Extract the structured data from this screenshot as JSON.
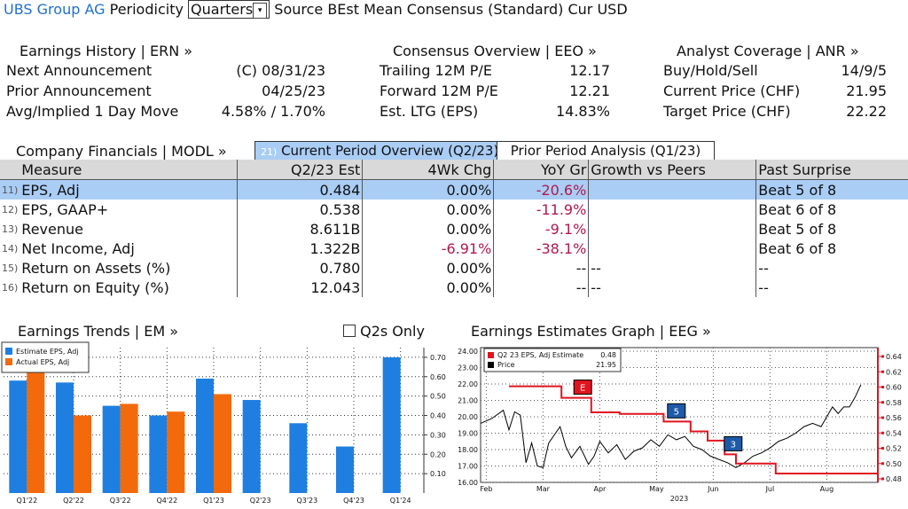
{
  "header": {
    "ticker": "UBS Group AG",
    "periodicity_label": "Periodicity",
    "periodicity_value": "Quarters",
    "source_label": "Source",
    "source_value": "BEst Mean Consensus (Standard)",
    "currency_label": "Cur",
    "currency_value": "USD"
  },
  "earnings_history": {
    "title": "Earnings History | ERN »",
    "rows": [
      {
        "label": "Next Announcement",
        "value": "(C)  08/31/23"
      },
      {
        "label": "Prior Announcement",
        "value": "04/25/23"
      },
      {
        "label": "Avg/Implied 1 Day Move",
        "value": "4.58% / 1.70%"
      }
    ]
  },
  "consensus_overview": {
    "title": "Consensus Overview | EEO »",
    "rows": [
      {
        "label": "Trailing 12M P/E",
        "value": "12.17"
      },
      {
        "label": "Forward 12M P/E",
        "value": "12.21"
      },
      {
        "label": "Est. LTG (EPS)",
        "value": "14.83%"
      }
    ]
  },
  "analyst_coverage": {
    "title": "Analyst Coverage | ANR »",
    "rows": [
      {
        "label": "Buy/Hold/Sell",
        "value": "14/9/5"
      },
      {
        "label": "Current Price (CHF)",
        "value": "21.95"
      },
      {
        "label": "Target Price (CHF)",
        "value": "22.22"
      }
    ]
  },
  "financials": {
    "title": "Company Financials | MODL »",
    "tab_current_num": "21)",
    "tab_current": "Current Period Overview (Q2/23)",
    "tab_prior": "Prior Period Analysis (Q1/23)",
    "columns": [
      "Measure",
      "Q2/23 Est",
      "4Wk Chg",
      "YoY Gr",
      "Growth vs Peers",
      "Past Surprise"
    ],
    "rows": [
      {
        "num": "11)",
        "measure": "EPS, Adj",
        "est": "0.484",
        "chg": "0.00%",
        "yoy": "-20.6%",
        "peers": "",
        "surprise": "Beat 5 of 8"
      },
      {
        "num": "12)",
        "measure": "EPS, GAAP+",
        "est": "0.538",
        "chg": "0.00%",
        "yoy": "-11.9%",
        "peers": "",
        "surprise": "Beat 6 of 8"
      },
      {
        "num": "13)",
        "measure": "Revenue",
        "est": "8.611B",
        "chg": "0.00%",
        "yoy": "-9.1%",
        "peers": "",
        "surprise": "Beat 5 of 8"
      },
      {
        "num": "14)",
        "measure": "Net Income, Adj",
        "est": "1.322B",
        "chg": "-6.91%",
        "yoy": "-38.1%",
        "peers": "",
        "surprise": "Beat 6 of 8"
      },
      {
        "num": "15)",
        "measure": "Return on Assets (%)",
        "est": "0.780",
        "chg": "0.00%",
        "yoy": "--",
        "peers": "--",
        "surprise": "--"
      },
      {
        "num": "16)",
        "measure": "Return on Equity (%)",
        "est": "12.043",
        "chg": "0.00%",
        "yoy": "--",
        "peers": "--",
        "surprise": "--"
      }
    ]
  },
  "earnings_trends": {
    "title": "Earnings Trends | EM »",
    "checkbox_label": "Q2s Only"
  },
  "estimates_graph": {
    "title": "Earnings Estimates Graph | EEG »"
  },
  "chart_data": [
    {
      "type": "bar",
      "categories": [
        "Q1'22",
        "Q2'22",
        "Q3'22",
        "Q4'22",
        "Q1'23",
        "Q2'23",
        "Q3'23",
        "Q4'23",
        "Q1'24"
      ],
      "series": [
        {
          "name": "Estimate EPS, Adj",
          "color": "#1e7fe0",
          "values": [
            0.58,
            0.57,
            0.45,
            0.4,
            0.59,
            0.48,
            0.36,
            0.24,
            0.7
          ]
        },
        {
          "name": "Actual EPS, Adj",
          "color": "#f26a0c",
          "values": [
            0.62,
            0.4,
            0.46,
            0.42,
            0.51,
            null,
            null,
            null,
            null
          ]
        }
      ],
      "ylim": [
        0,
        0.75
      ],
      "yticks": [
        "0.10",
        "0.20",
        "0.30",
        "0.40",
        "0.50",
        "0.60",
        "0.70"
      ],
      "grid": true,
      "legend": "top-left"
    },
    {
      "type": "line",
      "x_label": "2023",
      "xticks": [
        "Feb",
        "Mar",
        "Apr",
        "May",
        "Jun",
        "Jul",
        "Aug"
      ],
      "y_left_ticks": [
        "16.00",
        "17.00",
        "18.00",
        "19.00",
        "20.00",
        "21.00",
        "22.00",
        "23.00",
        "24.00"
      ],
      "y_right_ticks": [
        "0.48",
        "0.50",
        "0.52",
        "0.54",
        "0.56",
        "0.58",
        "0.60",
        "0.62",
        "0.64"
      ],
      "legend": [
        {
          "name": "Q2 23 EPS, Adj Estimate",
          "value": "0.48",
          "color": "#e0141e"
        },
        {
          "name": "Price",
          "value": "21.95",
          "color": "#000000"
        }
      ],
      "series": [
        {
          "name": "Q2 23 EPS, Adj Estimate",
          "color": "#e0141e",
          "points": [
            [
              1.0,
              0.601
            ],
            [
              2.85,
              0.601
            ],
            [
              2.85,
              0.586
            ],
            [
              3.9,
              0.586
            ],
            [
              3.9,
              0.567
            ],
            [
              4.9,
              0.567
            ],
            [
              4.9,
              0.565
            ],
            [
              6.45,
              0.565
            ],
            [
              6.45,
              0.555
            ],
            [
              7.4,
              0.555
            ],
            [
              7.4,
              0.542
            ],
            [
              8.0,
              0.542
            ],
            [
              8.0,
              0.53
            ],
            [
              8.6,
              0.53
            ],
            [
              8.6,
              0.512
            ],
            [
              9.0,
              0.512
            ],
            [
              9.0,
              0.5
            ],
            [
              10.4,
              0.5
            ],
            [
              10.4,
              0.487
            ],
            [
              14.0,
              0.487
            ]
          ]
        },
        {
          "name": "Price",
          "color": "#000000",
          "points": [
            [
              0.0,
              19.6
            ],
            [
              0.4,
              19.9
            ],
            [
              0.8,
              20.4
            ],
            [
              1.0,
              19.2
            ],
            [
              1.2,
              20.3
            ],
            [
              1.4,
              20.1
            ],
            [
              1.6,
              17.2
            ],
            [
              1.8,
              18.4
            ],
            [
              2.0,
              17.0
            ],
            [
              2.2,
              16.9
            ],
            [
              2.4,
              18.4
            ],
            [
              2.6,
              18.9
            ],
            [
              2.8,
              19.4
            ],
            [
              3.0,
              18.2
            ],
            [
              3.2,
              17.5
            ],
            [
              3.5,
              18.2
            ],
            [
              3.8,
              17.1
            ],
            [
              4.0,
              17.6
            ],
            [
              4.2,
              18.5
            ],
            [
              4.5,
              17.8
            ],
            [
              4.8,
              18.3
            ],
            [
              5.1,
              17.4
            ],
            [
              5.4,
              17.9
            ],
            [
              5.7,
              18.1
            ],
            [
              6.0,
              18.6
            ],
            [
              6.3,
              18.2
            ],
            [
              6.6,
              18.9
            ],
            [
              6.9,
              18.6
            ],
            [
              7.2,
              18.8
            ],
            [
              7.5,
              18.2
            ],
            [
              7.8,
              18.0
            ],
            [
              8.1,
              17.6
            ],
            [
              8.4,
              17.4
            ],
            [
              8.7,
              17.2
            ],
            [
              9.0,
              16.9
            ],
            [
              9.3,
              17.2
            ],
            [
              9.6,
              17.6
            ],
            [
              9.9,
              17.8
            ],
            [
              10.2,
              18.1
            ],
            [
              10.5,
              18.5
            ],
            [
              10.8,
              18.7
            ],
            [
              11.1,
              19.0
            ],
            [
              11.4,
              19.4
            ],
            [
              11.7,
              19.6
            ],
            [
              12.0,
              19.4
            ],
            [
              12.2,
              20.0
            ],
            [
              12.4,
              20.6
            ],
            [
              12.6,
              20.2
            ],
            [
              12.8,
              20.6
            ],
            [
              13.0,
              20.6
            ],
            [
              13.2,
              21.2
            ],
            [
              13.4,
              21.95
            ]
          ]
        }
      ],
      "markers": [
        {
          "label": "E",
          "color": "#e0141e",
          "x": 3.6
        },
        {
          "label": "5",
          "color": "#1e5aa8",
          "x": 6.9
        },
        {
          "label": "3",
          "color": "#1e5aa8",
          "x": 8.9
        }
      ]
    }
  ]
}
